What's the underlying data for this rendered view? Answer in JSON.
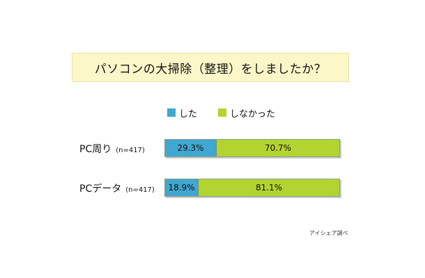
{
  "chart_data": {
    "type": "bar",
    "stacked": true,
    "orientation": "horizontal",
    "title": "パソコンの大掃除（整理）をしましたか？",
    "categories": [
      "PC周り",
      "PCデータ"
    ],
    "category_notes": [
      "(n=417)",
      "(n=417)"
    ],
    "series": [
      {
        "name": "した",
        "values": [
          29.3,
          18.9
        ],
        "labels": [
          "29.3%",
          "18.9%"
        ],
        "color": "#3fa7d0"
      },
      {
        "name": "しなかった",
        "values": [
          70.7,
          81.1
        ],
        "labels": [
          "70.7%",
          "81.1%"
        ],
        "color": "#b3d331"
      }
    ],
    "xlim": [
      0,
      100
    ],
    "grid": false,
    "legend": "top-center"
  },
  "source": "アイシェア調べ"
}
